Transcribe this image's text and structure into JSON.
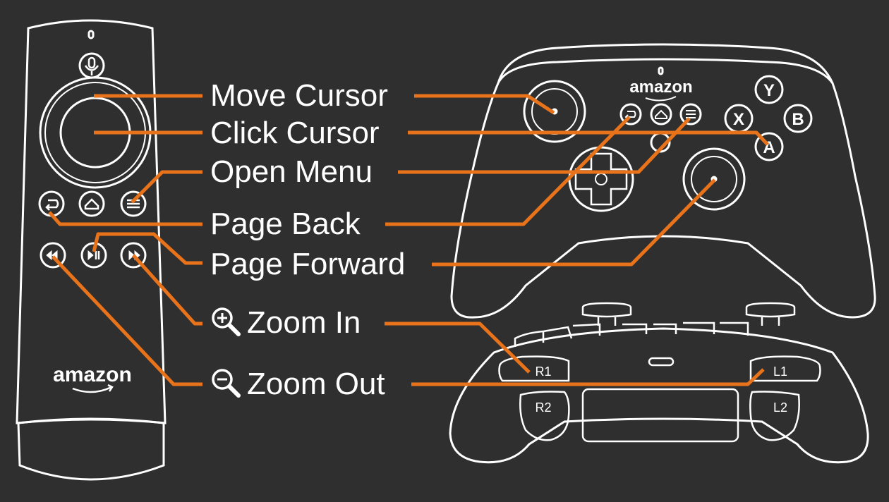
{
  "labels": {
    "move_cursor": "Move Cursor",
    "click_cursor": "Click Cursor",
    "open_menu": "Open Menu",
    "page_back": "Page Back",
    "page_forward": "Page Forward",
    "zoom_in": "Zoom In",
    "zoom_out": "Zoom Out"
  },
  "remote": {
    "brand": "amazon"
  },
  "gamepad": {
    "brand": "amazon",
    "face_buttons": {
      "y": "Y",
      "x": "X",
      "b": "B",
      "a": "A"
    },
    "shoulders": {
      "r1": "R1",
      "r2": "R2",
      "l1": "L1",
      "l2": "L2"
    }
  },
  "colors": {
    "background": "#2f2f2f",
    "outline": "#ffffff",
    "leader": "#e8731a",
    "text": "#ffffff"
  },
  "icons": {
    "zoom_in": "zoom-in-magnifier-icon",
    "zoom_out": "zoom-out-magnifier-icon"
  }
}
